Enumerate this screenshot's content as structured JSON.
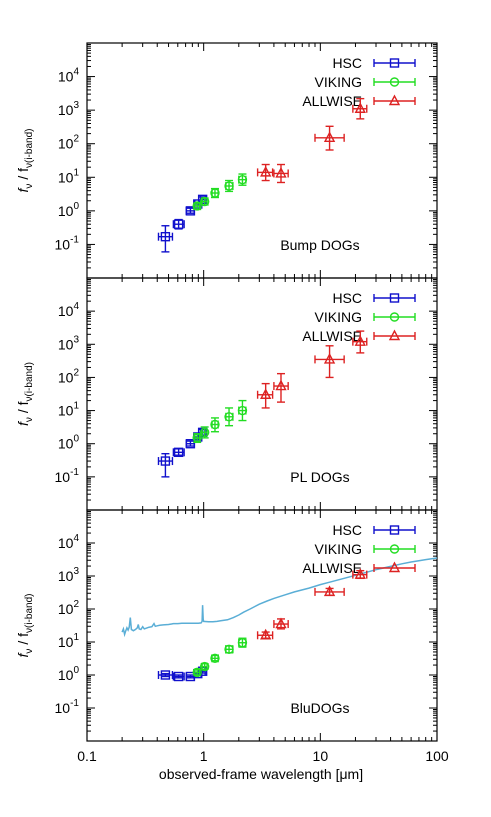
{
  "chart_data": [
    {
      "type": "scatter",
      "panel_label": "Bump DOGs",
      "ylabel_main": "f",
      "ylabel_sub1": "ν",
      "ylabel_mid": " / f",
      "ylabel_sub2": "ν(i-band)",
      "yscale": "log",
      "ylim": [
        0.01,
        100000
      ],
      "yticks": [
        {
          "value": 0.1,
          "base": "10",
          "exp": "-1"
        },
        {
          "value": 1,
          "base": "10",
          "exp": "0"
        },
        {
          "value": 10,
          "base": "10",
          "exp": "1"
        },
        {
          "value": 100,
          "base": "10",
          "exp": "2"
        },
        {
          "value": 1000,
          "base": "10",
          "exp": "3"
        },
        {
          "value": 10000,
          "base": "10",
          "exp": "4"
        }
      ],
      "legend_position": "top-right",
      "series": [
        {
          "name": "HSC",
          "color": "#1010cc",
          "marker": "square",
          "points": [
            {
              "x": 0.47,
              "y": 0.17,
              "xlo": 0.41,
              "xhi": 0.54,
              "ylo": 0.06,
              "yhi": 0.36
            },
            {
              "x": 0.61,
              "y": 0.4,
              "xlo": 0.55,
              "xhi": 0.68,
              "ylo": 0.29,
              "yhi": 0.55
            },
            {
              "x": 0.77,
              "y": 1.0,
              "xlo": 0.71,
              "xhi": 0.83,
              "ylo": 0.85,
              "yhi": 1.2
            },
            {
              "x": 0.89,
              "y": 1.6,
              "xlo": 0.84,
              "xhi": 0.95,
              "ylo": 1.4,
              "yhi": 1.8
            },
            {
              "x": 0.98,
              "y": 2.2,
              "xlo": 0.94,
              "xhi": 1.03,
              "ylo": 1.9,
              "yhi": 2.6
            }
          ]
        },
        {
          "name": "VIKING",
          "color": "#22dd22",
          "marker": "circle",
          "points": [
            {
              "x": 0.88,
              "y": 1.4,
              "xlo": 0.84,
              "xhi": 0.92,
              "ylo": 1.1,
              "yhi": 1.7
            },
            {
              "x": 1.02,
              "y": 1.9,
              "xlo": 0.97,
              "xhi": 1.07,
              "ylo": 1.5,
              "yhi": 2.4
            },
            {
              "x": 1.25,
              "y": 3.4,
              "xlo": 1.18,
              "xhi": 1.33,
              "ylo": 2.5,
              "yhi": 4.6
            },
            {
              "x": 1.65,
              "y": 5.5,
              "xlo": 1.55,
              "xhi": 1.78,
              "ylo": 3.8,
              "yhi": 8.0
            },
            {
              "x": 2.15,
              "y": 8.5,
              "xlo": 2.0,
              "xhi": 2.3,
              "ylo": 5.8,
              "yhi": 12.5
            }
          ]
        },
        {
          "name": "ALLWISE",
          "color": "#dd2222",
          "marker": "triangle",
          "points": [
            {
              "x": 3.4,
              "y": 14,
              "xlo": 2.9,
              "xhi": 3.9,
              "ylo": 8,
              "yhi": 24
            },
            {
              "x": 4.6,
              "y": 13,
              "xlo": 4.0,
              "xhi": 5.3,
              "ylo": 7,
              "yhi": 24
            },
            {
              "x": 12.0,
              "y": 150,
              "xlo": 9.0,
              "xhi": 16.0,
              "ylo": 65,
              "yhi": 330
            },
            {
              "x": 22.0,
              "y": 1100,
              "xlo": 19.0,
              "xhi": 25.0,
              "ylo": 550,
              "yhi": 2200
            }
          ]
        }
      ]
    },
    {
      "type": "scatter",
      "panel_label": "PL DOGs",
      "ylabel_main": "f",
      "ylabel_sub1": "ν",
      "ylabel_mid": " / f",
      "ylabel_sub2": "ν(i-band)",
      "yscale": "log",
      "ylim": [
        0.01,
        100000
      ],
      "yticks": [
        {
          "value": 0.1,
          "base": "10",
          "exp": "-1"
        },
        {
          "value": 1,
          "base": "10",
          "exp": "0"
        },
        {
          "value": 10,
          "base": "10",
          "exp": "1"
        },
        {
          "value": 100,
          "base": "10",
          "exp": "2"
        },
        {
          "value": 1000,
          "base": "10",
          "exp": "3"
        },
        {
          "value": 10000,
          "base": "10",
          "exp": "4"
        }
      ],
      "legend_position": "top-right",
      "series": [
        {
          "name": "HSC",
          "color": "#1010cc",
          "marker": "square",
          "points": [
            {
              "x": 0.47,
              "y": 0.3,
              "xlo": 0.41,
              "xhi": 0.54,
              "ylo": 0.1,
              "yhi": 0.5
            },
            {
              "x": 0.61,
              "y": 0.55,
              "xlo": 0.55,
              "xhi": 0.68,
              "ylo": 0.45,
              "yhi": 0.7
            },
            {
              "x": 0.77,
              "y": 1.0,
              "xlo": 0.71,
              "xhi": 0.83,
              "ylo": 0.85,
              "yhi": 1.2
            },
            {
              "x": 0.89,
              "y": 1.6,
              "xlo": 0.84,
              "xhi": 0.95,
              "ylo": 1.35,
              "yhi": 1.9
            },
            {
              "x": 0.98,
              "y": 2.2,
              "xlo": 0.94,
              "xhi": 1.03,
              "ylo": 1.8,
              "yhi": 2.7
            }
          ]
        },
        {
          "name": "VIKING",
          "color": "#22dd22",
          "marker": "circle",
          "points": [
            {
              "x": 0.88,
              "y": 1.5,
              "xlo": 0.84,
              "xhi": 0.92,
              "ylo": 1.1,
              "yhi": 2.0
            },
            {
              "x": 1.02,
              "y": 2.2,
              "xlo": 0.97,
              "xhi": 1.07,
              "ylo": 1.5,
              "yhi": 3.2
            },
            {
              "x": 1.25,
              "y": 3.8,
              "xlo": 1.18,
              "xhi": 1.33,
              "ylo": 2.3,
              "yhi": 6.0
            },
            {
              "x": 1.65,
              "y": 6.5,
              "xlo": 1.55,
              "xhi": 1.78,
              "ylo": 3.5,
              "yhi": 12.0
            },
            {
              "x": 2.15,
              "y": 10.0,
              "xlo": 2.0,
              "xhi": 2.3,
              "ylo": 5.0,
              "yhi": 20.0
            }
          ]
        },
        {
          "name": "ALLWISE",
          "color": "#dd2222",
          "marker": "triangle",
          "points": [
            {
              "x": 3.4,
              "y": 30,
              "xlo": 2.9,
              "xhi": 3.9,
              "ylo": 12,
              "yhi": 65
            },
            {
              "x": 4.6,
              "y": 55,
              "xlo": 4.0,
              "xhi": 5.3,
              "ylo": 18,
              "yhi": 130
            },
            {
              "x": 12.0,
              "y": 350,
              "xlo": 9.0,
              "xhi": 16.0,
              "ylo": 100,
              "yhi": 900
            },
            {
              "x": 22.0,
              "y": 1200,
              "xlo": 19.0,
              "xhi": 25.0,
              "ylo": 550,
              "yhi": 2500
            }
          ]
        }
      ]
    },
    {
      "type": "scatter",
      "panel_label": "BluDOGs",
      "ylabel_main": "f",
      "ylabel_sub1": "ν",
      "ylabel_mid": " / f",
      "ylabel_sub2": "ν(i-band)",
      "yscale": "log",
      "ylim": [
        0.01,
        100000
      ],
      "yticks": [
        {
          "value": 0.1,
          "base": "10",
          "exp": "-1"
        },
        {
          "value": 1,
          "base": "10",
          "exp": "0"
        },
        {
          "value": 10,
          "base": "10",
          "exp": "1"
        },
        {
          "value": 100,
          "base": "10",
          "exp": "2"
        },
        {
          "value": 1000,
          "base": "10",
          "exp": "3"
        },
        {
          "value": 10000,
          "base": "10",
          "exp": "4"
        }
      ],
      "legend_position": "top-right",
      "series": [
        {
          "name": "HSC",
          "color": "#1010cc",
          "marker": "square",
          "points": [
            {
              "x": 0.47,
              "y": 1.0,
              "xlo": 0.41,
              "xhi": 0.54,
              "ylo": 0.9,
              "yhi": 1.1
            },
            {
              "x": 0.61,
              "y": 0.9,
              "xlo": 0.55,
              "xhi": 0.68,
              "ylo": 0.82,
              "yhi": 1.0
            },
            {
              "x": 0.77,
              "y": 0.9,
              "xlo": 0.71,
              "xhi": 0.83,
              "ylo": 0.82,
              "yhi": 1.0
            },
            {
              "x": 0.89,
              "y": 1.1,
              "xlo": 0.84,
              "xhi": 0.95,
              "ylo": 1.0,
              "yhi": 1.2
            },
            {
              "x": 0.98,
              "y": 1.3,
              "xlo": 0.94,
              "xhi": 1.03,
              "ylo": 1.15,
              "yhi": 1.45
            }
          ]
        },
        {
          "name": "VIKING",
          "color": "#22dd22",
          "marker": "circle",
          "points": [
            {
              "x": 0.88,
              "y": 1.2,
              "xlo": 0.84,
              "xhi": 0.92,
              "ylo": 1.0,
              "yhi": 1.45
            },
            {
              "x": 1.02,
              "y": 1.8,
              "xlo": 0.97,
              "xhi": 1.07,
              "ylo": 1.5,
              "yhi": 2.2
            },
            {
              "x": 1.25,
              "y": 3.2,
              "xlo": 1.18,
              "xhi": 1.33,
              "ylo": 2.7,
              "yhi": 3.9
            },
            {
              "x": 1.65,
              "y": 6.0,
              "xlo": 1.55,
              "xhi": 1.78,
              "ylo": 4.7,
              "yhi": 7.6
            },
            {
              "x": 2.15,
              "y": 9.5,
              "xlo": 2.0,
              "xhi": 2.3,
              "ylo": 7.0,
              "yhi": 13.0
            }
          ]
        },
        {
          "name": "ALLWISE",
          "color": "#dd2222",
          "marker": "triangle",
          "points": [
            {
              "x": 3.4,
              "y": 16,
              "xlo": 2.9,
              "xhi": 3.9,
              "ylo": 13,
              "yhi": 20
            },
            {
              "x": 4.6,
              "y": 35,
              "xlo": 4.0,
              "xhi": 5.3,
              "ylo": 25,
              "yhi": 50
            },
            {
              "x": 12.0,
              "y": 330,
              "xlo": 9.0,
              "xhi": 16.0,
              "ylo": 260,
              "yhi": 420
            },
            {
              "x": 22.0,
              "y": 1100,
              "xlo": 19.0,
              "xhi": 25.0,
              "ylo": 850,
              "yhi": 1450
            }
          ]
        }
      ],
      "template": {
        "color": "#5aaed6",
        "points": [
          [
            0.2,
            20
          ],
          [
            0.205,
            25
          ],
          [
            0.21,
            17
          ],
          [
            0.215,
            22
          ],
          [
            0.22,
            27
          ],
          [
            0.225,
            23
          ],
          [
            0.23,
            28
          ],
          [
            0.235,
            55
          ],
          [
            0.24,
            24
          ],
          [
            0.25,
            22
          ],
          [
            0.26,
            24
          ],
          [
            0.27,
            27
          ],
          [
            0.275,
            34
          ],
          [
            0.28,
            25
          ],
          [
            0.29,
            24
          ],
          [
            0.3,
            29
          ],
          [
            0.31,
            25
          ],
          [
            0.32,
            26
          ],
          [
            0.34,
            28
          ],
          [
            0.36,
            29
          ],
          [
            0.375,
            36
          ],
          [
            0.385,
            30
          ],
          [
            0.4,
            31
          ],
          [
            0.42,
            32
          ],
          [
            0.45,
            33
          ],
          [
            0.5,
            34
          ],
          [
            0.53,
            35
          ],
          [
            0.55,
            36
          ],
          [
            0.6,
            36
          ],
          [
            0.65,
            37
          ],
          [
            0.7,
            37
          ],
          [
            0.8,
            37
          ],
          [
            0.9,
            37
          ],
          [
            0.95,
            38
          ],
          [
            0.97,
            42
          ],
          [
            0.98,
            130
          ],
          [
            0.99,
            48
          ],
          [
            1.0,
            42
          ],
          [
            1.1,
            41
          ],
          [
            1.2,
            41
          ],
          [
            1.3,
            42
          ],
          [
            1.4,
            44
          ],
          [
            1.6,
            47
          ],
          [
            1.8,
            55
          ],
          [
            2.0,
            66
          ],
          [
            2.2,
            80
          ],
          [
            2.5,
            100
          ],
          [
            3.0,
            140
          ],
          [
            3.5,
            175
          ],
          [
            4.0,
            210
          ],
          [
            5.0,
            270
          ],
          [
            6.0,
            330
          ],
          [
            8.0,
            430
          ],
          [
            10.0,
            550
          ],
          [
            12.0,
            650
          ],
          [
            15.0,
            800
          ],
          [
            20.0,
            1050
          ],
          [
            25.0,
            1300
          ],
          [
            30.0,
            1550
          ],
          [
            40.0,
            1950
          ],
          [
            50.0,
            2350
          ],
          [
            60.0,
            2650
          ],
          [
            70.0,
            2900
          ],
          [
            80.0,
            3150
          ],
          [
            90.0,
            3350
          ],
          [
            100.0,
            3500
          ]
        ]
      }
    }
  ],
  "x_axis": {
    "label": "observed-frame wavelength [μm]",
    "scale": "log",
    "xlim": [
      0.1,
      100
    ],
    "ticks": [
      {
        "value": 0.1,
        "label": "0.1"
      },
      {
        "value": 1,
        "label": "1"
      },
      {
        "value": 10,
        "label": "10"
      },
      {
        "value": 100,
        "label": "100"
      }
    ]
  }
}
